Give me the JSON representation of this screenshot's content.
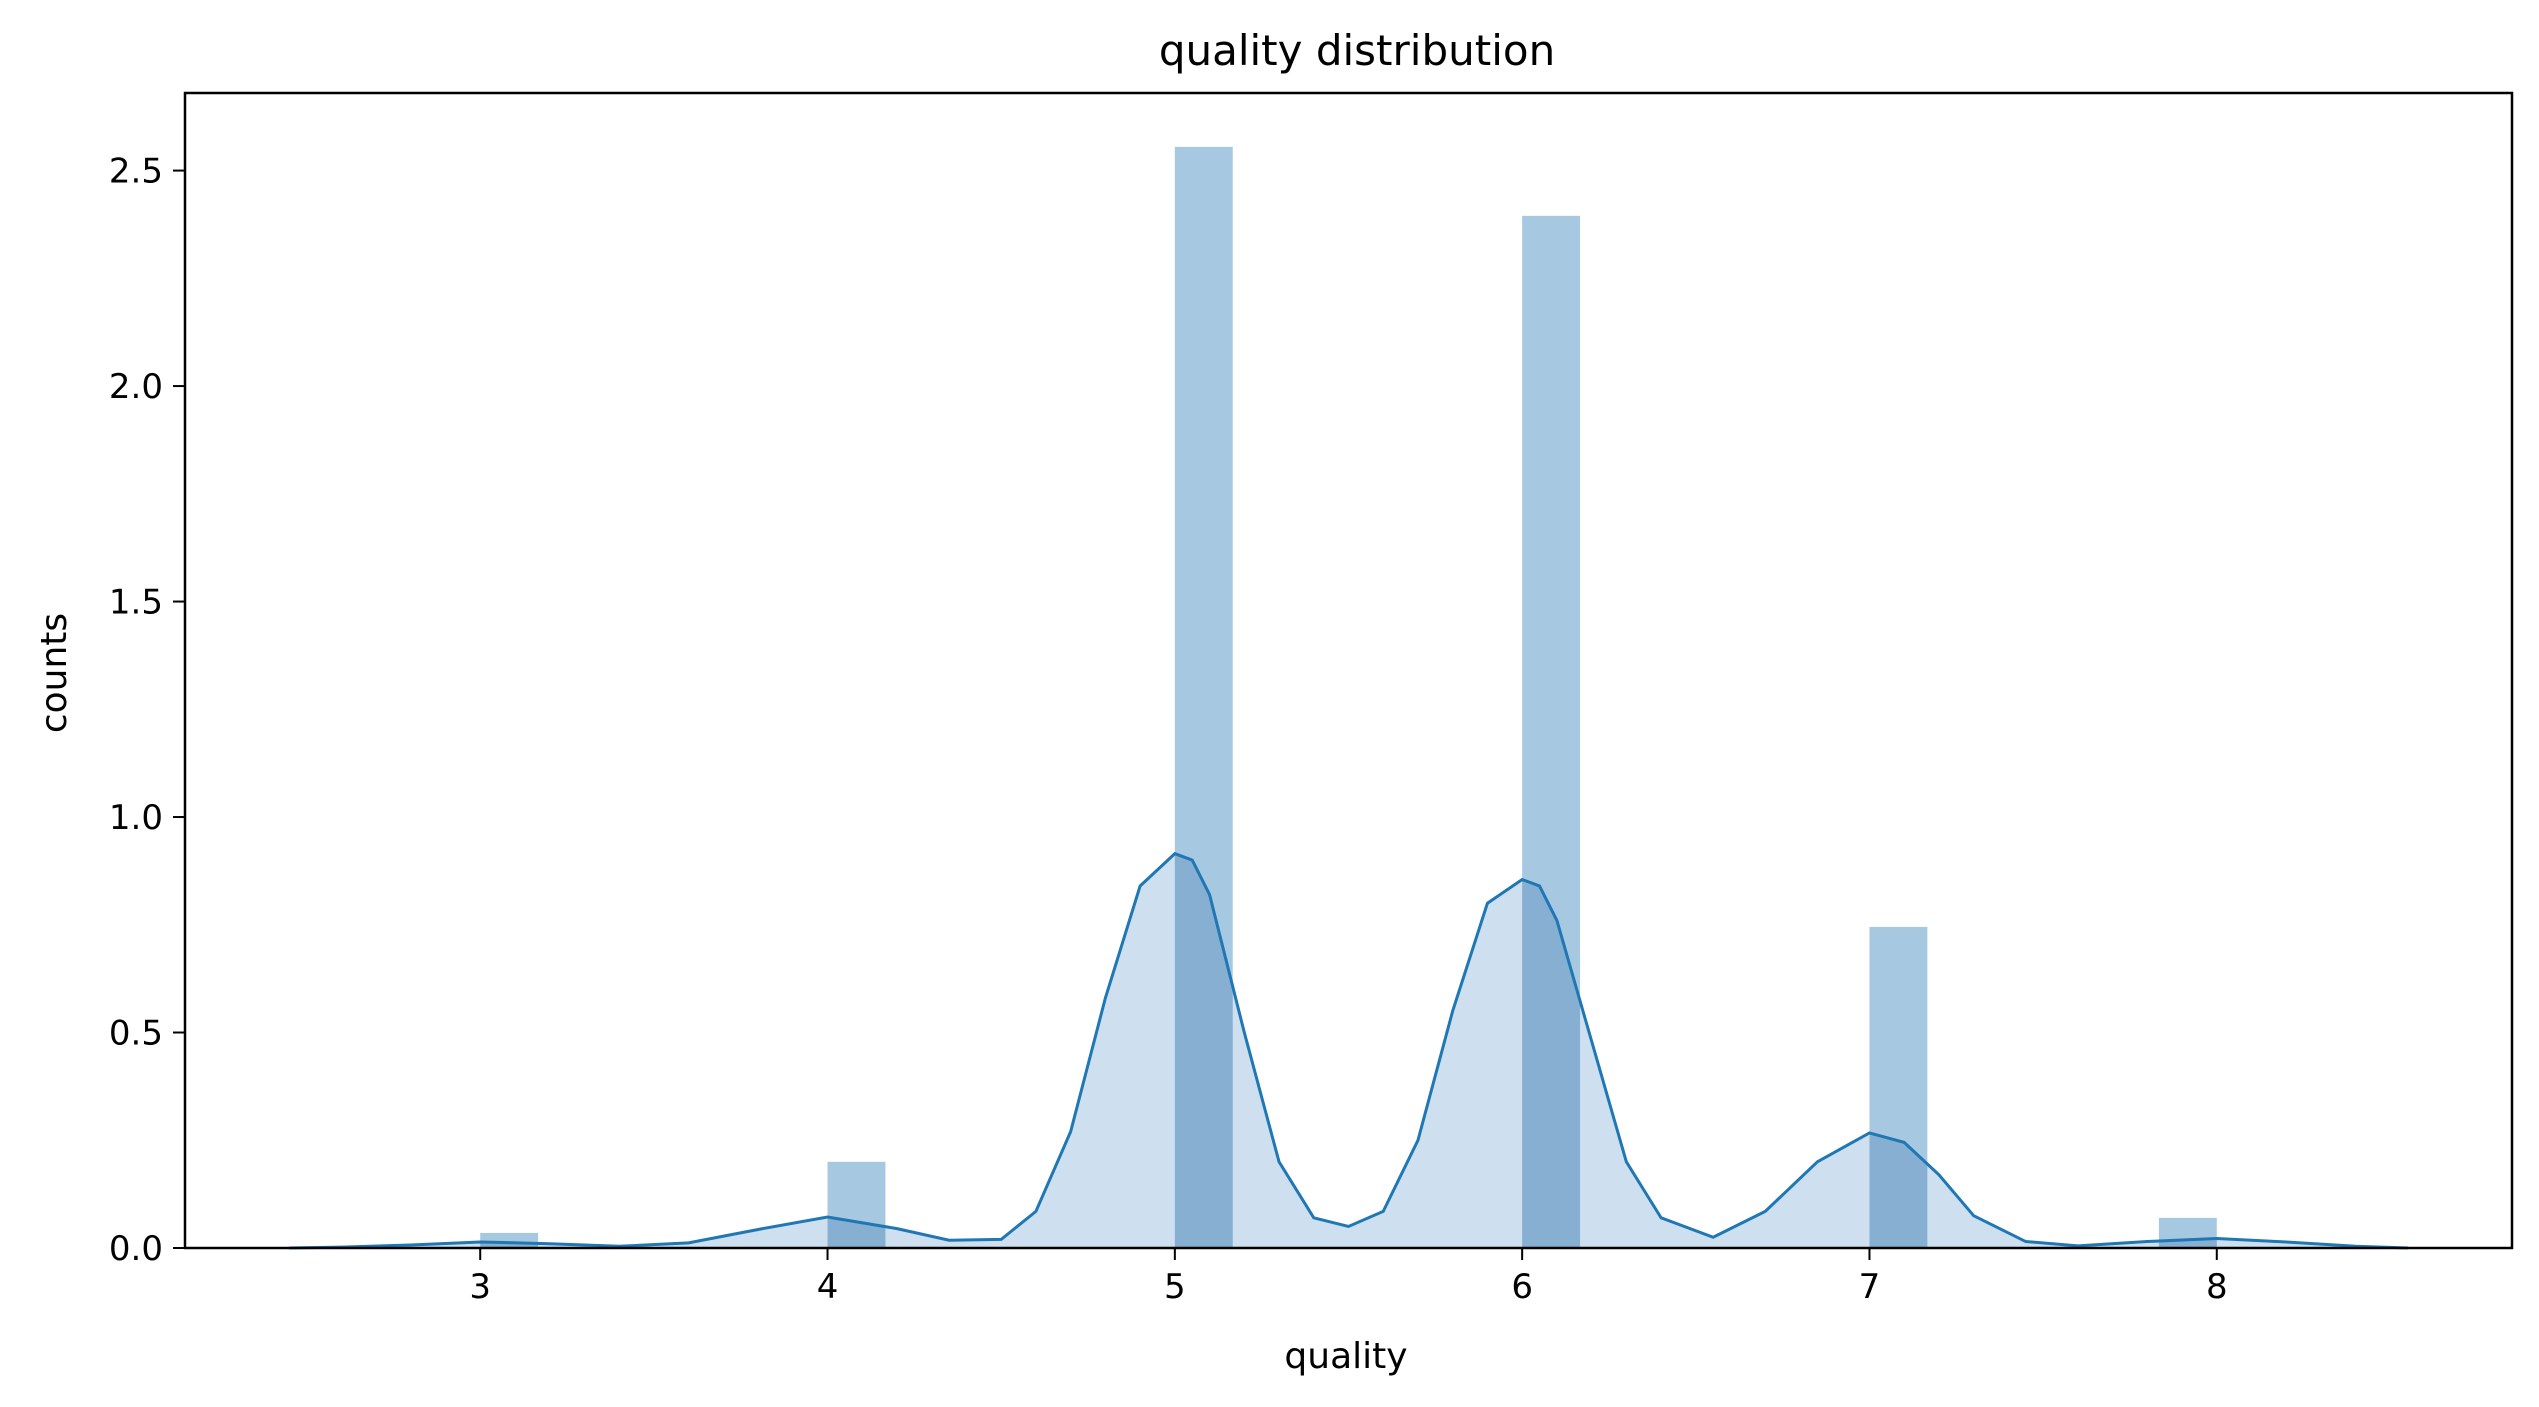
{
  "chart_data": {
    "type": "bar",
    "title": "quality distribution",
    "xlabel": "quality",
    "ylabel": "counts",
    "xlim": [
      2.15,
      8.85
    ],
    "ylim": [
      0,
      2.68
    ],
    "xticks": [
      3,
      4,
      5,
      6,
      7,
      8
    ],
    "xtick_labels": [
      "3",
      "4",
      "5",
      "6",
      "7",
      "8"
    ],
    "yticks": [
      0,
      0.5,
      1.0,
      1.5,
      2.0,
      2.5
    ],
    "ytick_labels": [
      "0.0",
      "0.5",
      "1.0",
      "1.5",
      "2.0",
      "2.5"
    ],
    "grid": false,
    "colors": {
      "bars": "#a6c8e0",
      "kde_line": "#1f77b4",
      "kde_fill": "#c6dbec"
    },
    "bins": {
      "width": 0.1667,
      "edges_start": [
        3.0,
        4.0,
        5.0,
        6.0,
        7.0,
        7.8333
      ],
      "values": [
        0.035,
        0.2,
        2.555,
        2.395,
        0.745,
        0.07
      ]
    },
    "kde": {
      "x": [
        2.45,
        2.6,
        2.8,
        3.0,
        3.2,
        3.4,
        3.6,
        3.8,
        4.0,
        4.2,
        4.35,
        4.5,
        4.6,
        4.7,
        4.8,
        4.9,
        5.0,
        5.05,
        5.1,
        5.2,
        5.3,
        5.4,
        5.5,
        5.6,
        5.7,
        5.8,
        5.9,
        6.0,
        6.05,
        6.1,
        6.2,
        6.3,
        6.4,
        6.55,
        6.7,
        6.85,
        7.0,
        7.1,
        7.2,
        7.3,
        7.45,
        7.6,
        7.8,
        8.0,
        8.2,
        8.4,
        8.55
      ],
      "y": [
        0.0,
        0.002,
        0.007,
        0.014,
        0.01,
        0.004,
        0.012,
        0.043,
        0.072,
        0.045,
        0.018,
        0.02,
        0.085,
        0.27,
        0.58,
        0.84,
        0.915,
        0.9,
        0.82,
        0.5,
        0.2,
        0.07,
        0.05,
        0.085,
        0.25,
        0.55,
        0.8,
        0.855,
        0.84,
        0.76,
        0.48,
        0.2,
        0.07,
        0.025,
        0.085,
        0.2,
        0.267,
        0.245,
        0.17,
        0.075,
        0.015,
        0.005,
        0.015,
        0.022,
        0.014,
        0.004,
        0.0
      ]
    }
  }
}
